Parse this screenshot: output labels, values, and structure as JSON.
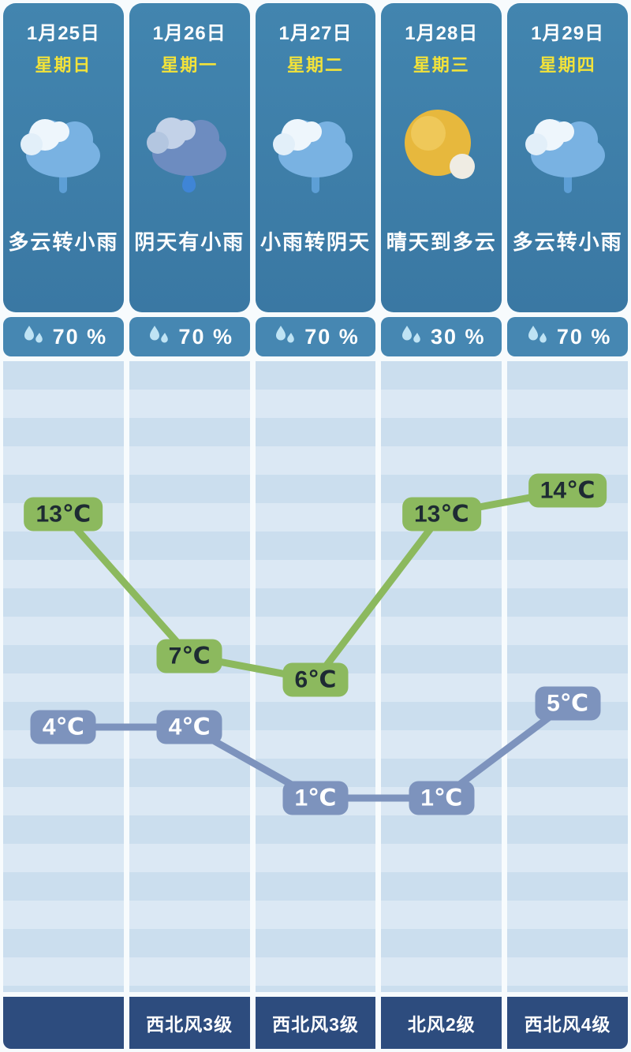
{
  "colors": {
    "card_blue": "#3e80aa",
    "precip_bar_blue": "#4687b2",
    "wind_navy": "#2d4c7e",
    "weekday_yellow": "#f2e23a",
    "high_green": "#8cb95e",
    "low_slate_blue": "#7d93bd",
    "chart_band_light": "#dbe8f4",
    "chart_band_dark": "#cbdeee"
  },
  "days": [
    {
      "date": "1月25日",
      "weekday": "星期日",
      "icon": "cloud-drizzle-icon",
      "condition": "多云转小雨",
      "precipitation": "70 %",
      "wind": ""
    },
    {
      "date": "1月26日",
      "weekday": "星期一",
      "icon": "dark-rain-cloud-icon",
      "condition": "阴天有小雨",
      "precipitation": "70 %",
      "wind": "西北风3级"
    },
    {
      "date": "1月27日",
      "weekday": "星期二",
      "icon": "cloud-drizzle-icon",
      "condition": "小雨转阴天",
      "precipitation": "70 %",
      "wind": "西北风3级"
    },
    {
      "date": "1月28日",
      "weekday": "星期三",
      "icon": "sun-icon",
      "condition": "晴天到多云",
      "precipitation": "30 %",
      "wind": "北风2级"
    },
    {
      "date": "1月29日",
      "weekday": "星期四",
      "icon": "cloud-drizzle-icon",
      "condition": "多云转小雨",
      "precipitation": "70 %",
      "wind": "西北风4级"
    }
  ],
  "chart_data": {
    "type": "line",
    "categories": [
      "1月25日",
      "1月26日",
      "1月27日",
      "1月28日",
      "1月29日"
    ],
    "series": [
      {
        "name": "high",
        "values": [
          13,
          7,
          6,
          13,
          14
        ],
        "labels": [
          "13℃",
          "7℃",
          "6℃",
          "13℃",
          "14℃"
        ],
        "color": "#8cb95e"
      },
      {
        "name": "low",
        "values": [
          4,
          4,
          1,
          1,
          5
        ],
        "labels": [
          "4℃",
          "4℃",
          "1℃",
          "1℃",
          "5℃"
        ],
        "color": "#7d93bd"
      }
    ],
    "unit": "℃",
    "ylim": [
      -1,
      16
    ],
    "grid": "horizontal-bands",
    "legend": "none",
    "title": ""
  }
}
